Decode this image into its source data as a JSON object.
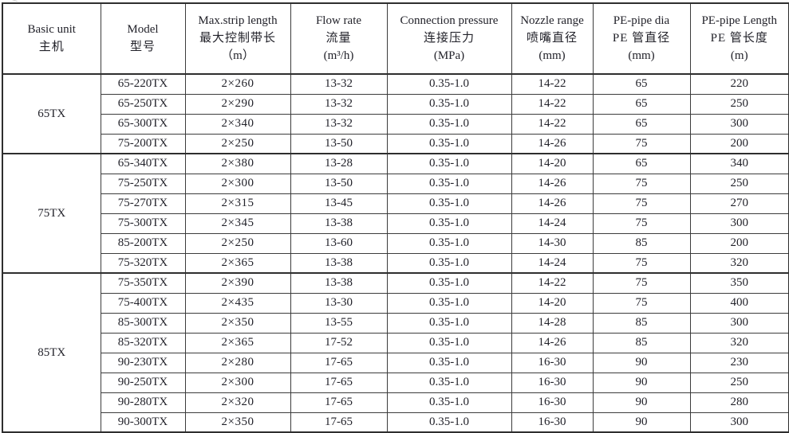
{
  "table": {
    "headers": [
      {
        "en": "Basic unit",
        "zh": "主机",
        "unit": ""
      },
      {
        "en": "Model",
        "zh": "型号",
        "unit": ""
      },
      {
        "en": "Max.strip length",
        "zh": "最大控制带长",
        "unit": "（m）"
      },
      {
        "en": "Flow rate",
        "zh": "流量",
        "unit": "(m³/h)"
      },
      {
        "en": "Connection pressure",
        "zh": "连接压力",
        "unit": "(MPa)"
      },
      {
        "en": "Nozzle range",
        "zh": "喷嘴直径",
        "unit": "(mm)"
      },
      {
        "en": "PE-pipe dia",
        "zh": "PE 管直径",
        "unit": "(mm)"
      },
      {
        "en": "PE-pipe Length",
        "zh": "PE 管长度",
        "unit": "(m)"
      }
    ],
    "column_keys": [
      "model",
      "max_strip_length",
      "flow_rate",
      "connection_pressure",
      "nozzle_range",
      "pe_pipe_dia",
      "pe_pipe_length"
    ],
    "groups": [
      {
        "basic_unit": "65TX",
        "rows": [
          [
            "65-220TX",
            "2×260",
            "13-32",
            "0.35-1.0",
            "14-22",
            "65",
            "220"
          ],
          [
            "65-250TX",
            "2×290",
            "13-32",
            "0.35-1.0",
            "14-22",
            "65",
            "250"
          ],
          [
            "65-300TX",
            "2×340",
            "13-32",
            "0.35-1.0",
            "14-22",
            "65",
            "300"
          ],
          [
            "75-200TX",
            "2×250",
            "13-50",
            "0.35-1.0",
            "14-26",
            "75",
            "200"
          ]
        ]
      },
      {
        "basic_unit": "75TX",
        "rows": [
          [
            "65-340TX",
            "2×380",
            "13-28",
            "0.35-1.0",
            "14-20",
            "65",
            "340"
          ],
          [
            "75-250TX",
            "2×300",
            "13-50",
            "0.35-1.0",
            "14-26",
            "75",
            "250"
          ],
          [
            "75-270TX",
            "2×315",
            "13-45",
            "0.35-1.0",
            "14-26",
            "75",
            "270"
          ],
          [
            "75-300TX",
            "2×345",
            "13-38",
            "0.35-1.0",
            "14-24",
            "75",
            "300"
          ],
          [
            "85-200TX",
            "2×250",
            "13-60",
            "0.35-1.0",
            "14-30",
            "85",
            "200"
          ],
          [
            "75-320TX",
            "2×365",
            "13-38",
            "0.35-1.0",
            "14-24",
            "75",
            "320"
          ]
        ]
      },
      {
        "basic_unit": "85TX",
        "rows": [
          [
            "75-350TX",
            "2×390",
            "13-38",
            "0.35-1.0",
            "14-22",
            "75",
            "350"
          ],
          [
            "75-400TX",
            "2×435",
            "13-30",
            "0.35-1.0",
            "14-20",
            "75",
            "400"
          ],
          [
            "85-300TX",
            "2×350",
            "13-55",
            "0.35-1.0",
            "14-28",
            "85",
            "300"
          ],
          [
            "85-320TX",
            "2×365",
            "17-52",
            "0.35-1.0",
            "14-26",
            "85",
            "320"
          ],
          [
            "90-230TX",
            "2×280",
            "17-65",
            "0.35-1.0",
            "16-30",
            "90",
            "230"
          ],
          [
            "90-250TX",
            "2×300",
            "17-65",
            "0.35-1.0",
            "16-30",
            "90",
            "250"
          ],
          [
            "90-280TX",
            "2×320",
            "17-65",
            "0.35-1.0",
            "16-30",
            "90",
            "280"
          ],
          [
            "90-300TX",
            "2×350",
            "17-65",
            "0.35-1.0",
            "16-30",
            "90",
            "300"
          ]
        ]
      }
    ]
  }
}
